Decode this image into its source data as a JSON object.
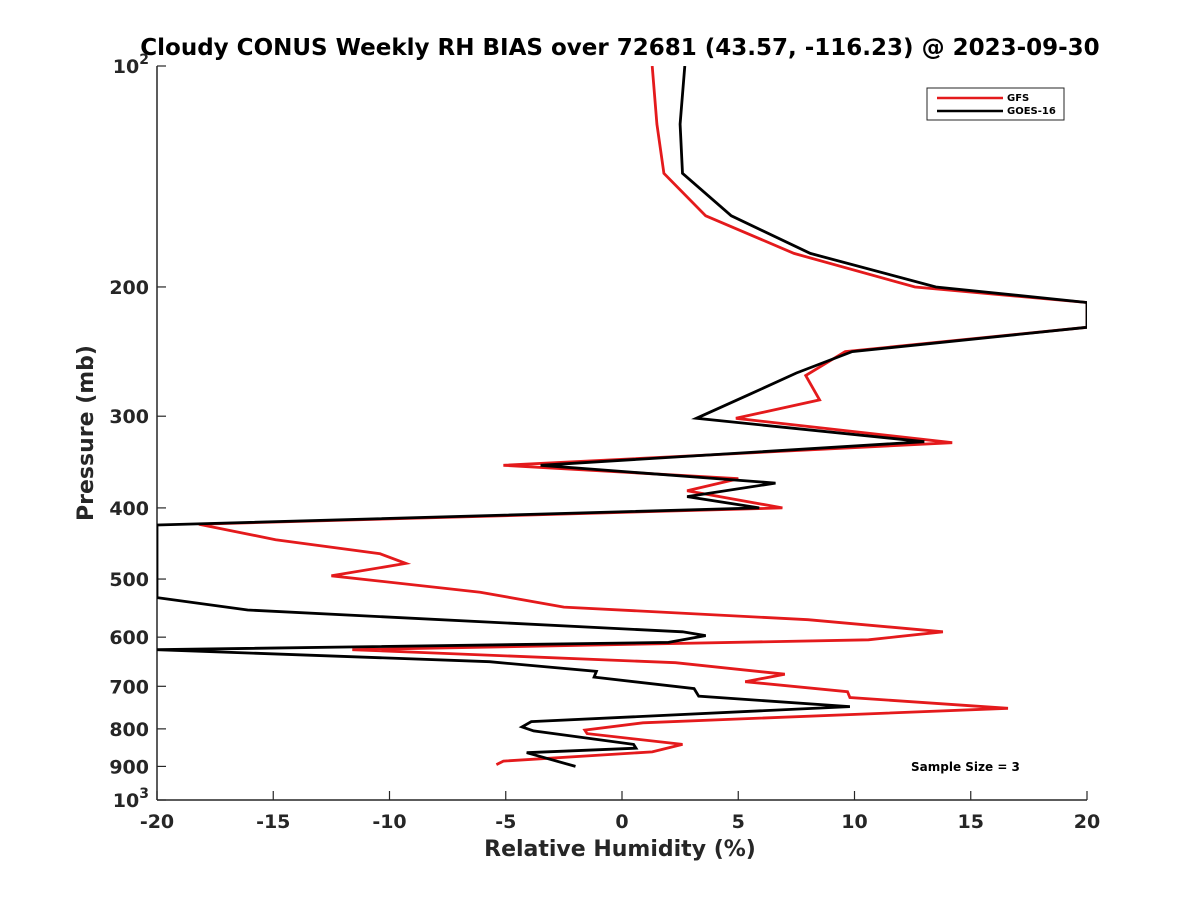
{
  "chart_data": {
    "type": "line",
    "title": "Cloudy CONUS Weekly RH BIAS over 72681 (43.57, -116.23) @ 2023-09-30",
    "xlabel": "Relative Humidity (%)",
    "ylabel": "Pressure (mb)",
    "xlim": [
      -20,
      20
    ],
    "ylim": [
      100,
      1000
    ],
    "yscale": "log",
    "y_reversed": true,
    "xticks": [
      -20,
      -15,
      -10,
      -5,
      0,
      5,
      10,
      15,
      20
    ],
    "xtick_labels": [
      "-20",
      "-15",
      "-10",
      "-5",
      "0",
      "5",
      "10",
      "15",
      "20"
    ],
    "yticks": [
      100,
      200,
      300,
      400,
      500,
      600,
      700,
      800,
      900,
      1000
    ],
    "ytick_labels": [
      {
        "base": "10",
        "exp": "2"
      },
      {
        "base": "200",
        "exp": ""
      },
      {
        "base": "300",
        "exp": ""
      },
      {
        "base": "400",
        "exp": ""
      },
      {
        "base": "500",
        "exp": ""
      },
      {
        "base": "600",
        "exp": ""
      },
      {
        "base": "700",
        "exp": ""
      },
      {
        "base": "800",
        "exp": ""
      },
      {
        "base": "900",
        "exp": ""
      },
      {
        "base": "10",
        "exp": "3"
      }
    ],
    "grid": false,
    "legend_position": "top-right",
    "annotation": "Sample Size = 3",
    "series": [
      {
        "name": "GFS",
        "color": "#e41a1c",
        "points": [
          [
            1.3,
            100
          ],
          [
            1.5,
            120
          ],
          [
            1.8,
            140
          ],
          [
            3.6,
            160
          ],
          [
            7.4,
            180
          ],
          [
            12.6,
            200
          ],
          [
            20.0,
            210
          ],
          [
            20.0,
            227
          ],
          [
            9.6,
            245
          ],
          [
            7.9,
            264
          ],
          [
            8.5,
            285
          ],
          [
            4.9,
            302
          ],
          [
            14.2,
            326
          ],
          [
            -5.1,
            350
          ],
          [
            5.0,
            365
          ],
          [
            2.8,
            379
          ],
          [
            6.9,
            400
          ],
          [
            -18.2,
            421
          ],
          [
            -14.9,
            442
          ],
          [
            -10.4,
            462
          ],
          [
            -9.3,
            476
          ],
          [
            -12.5,
            495
          ],
          [
            -6.1,
            521
          ],
          [
            -2.5,
            546
          ],
          [
            8.0,
            568
          ],
          [
            13.8,
            590
          ],
          [
            10.6,
            605
          ],
          [
            -11.6,
            624
          ],
          [
            2.3,
            650
          ],
          [
            7.0,
            674
          ],
          [
            5.3,
            690
          ],
          [
            9.7,
            712
          ],
          [
            9.8,
            725
          ],
          [
            16.6,
            750
          ],
          [
            0.9,
            785
          ],
          [
            -1.6,
            803
          ],
          [
            -1.5,
            812
          ],
          [
            2.6,
            840
          ],
          [
            1.3,
            860
          ],
          [
            -5.1,
            885
          ],
          [
            -5.4,
            895
          ]
        ]
      },
      {
        "name": "GOES-16",
        "color": "#000000",
        "points": [
          [
            2.7,
            100
          ],
          [
            2.5,
            120
          ],
          [
            2.6,
            140
          ],
          [
            4.7,
            160
          ],
          [
            8.1,
            180
          ],
          [
            13.5,
            200
          ],
          [
            20.0,
            210
          ],
          [
            20.0,
            227
          ],
          [
            9.9,
            245
          ],
          [
            7.5,
            262
          ],
          [
            5.5,
            280
          ],
          [
            3.2,
            302
          ],
          [
            13.0,
            325
          ],
          [
            -3.5,
            350
          ],
          [
            6.6,
            370
          ],
          [
            2.8,
            386
          ],
          [
            5.9,
            400
          ],
          [
            -20.0,
            422
          ],
          [
            -20.0,
            530
          ],
          [
            -16.1,
            551
          ],
          [
            2.6,
            590
          ],
          [
            3.6,
            597
          ],
          [
            2.0,
            610
          ],
          [
            -20.0,
            624
          ],
          [
            -5.7,
            648
          ],
          [
            -1.1,
            668
          ],
          [
            -1.2,
            680
          ],
          [
            3.1,
            705
          ],
          [
            3.3,
            722
          ],
          [
            9.8,
            746
          ],
          [
            -3.9,
            782
          ],
          [
            -4.3,
            795
          ],
          [
            -3.8,
            805
          ],
          [
            0.5,
            840
          ],
          [
            0.6,
            850
          ],
          [
            -4.1,
            862
          ],
          [
            -2.0,
            900
          ]
        ]
      }
    ]
  }
}
